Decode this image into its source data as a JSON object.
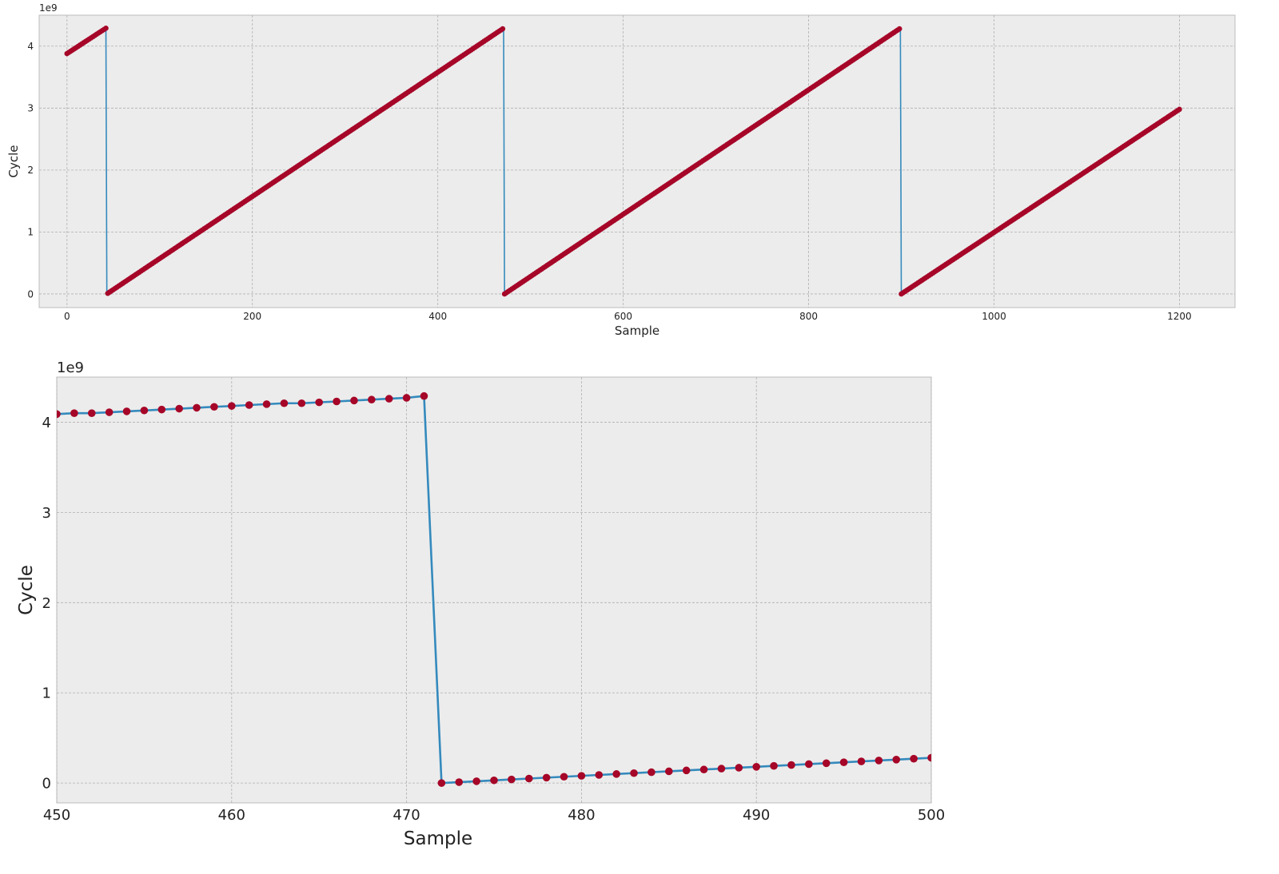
{
  "chart_data": [
    {
      "type": "line",
      "xlabel": "Sample",
      "ylabel": "Cycle",
      "offset_text": "1e9",
      "xlim": [
        -30,
        1260
      ],
      "ylim": [
        -0.22,
        4.5
      ],
      "x_ticks": [
        0,
        200,
        400,
        600,
        800,
        1000,
        1200
      ],
      "x_tick_labels": [
        "0",
        "200",
        "400",
        "600",
        "800",
        "1000",
        "1200"
      ],
      "y_ticks": [
        0,
        1,
        2,
        3,
        4
      ],
      "y_tick_labels": [
        "0",
        "1",
        "2",
        "3",
        "4"
      ],
      "grid": true,
      "line_color": "#348ABD",
      "marker_color": "#A60628",
      "series": [
        {
          "x": [
            0,
            42,
            42,
            471,
            472,
            899,
            900,
            1200
          ],
          "y": [
            3.88,
            4.29,
            4.29,
            4.29,
            0.0,
            4.29,
            0.0,
            2.98
          ],
          "segments": [
            {
              "x_start": 0,
              "x_end": 42,
              "y_start": 3.88,
              "y_end": 4.29
            },
            {
              "x_start": 43,
              "x_end": 471,
              "y_start": 0.0,
              "y_end": 4.29
            },
            {
              "x_start": 472,
              "x_end": 899,
              "y_start": 0.0,
              "y_end": 4.29
            },
            {
              "x_start": 900,
              "x_end": 1200,
              "y_start": 0.0,
              "y_end": 2.98
            }
          ],
          "marker_every": 2
        }
      ]
    },
    {
      "type": "line",
      "xlabel": "Sample",
      "ylabel": "Cycle",
      "offset_text": "1e9",
      "xlim": [
        450,
        500
      ],
      "ylim": [
        -0.22,
        4.5
      ],
      "x_ticks": [
        450,
        460,
        470,
        480,
        490,
        500
      ],
      "x_tick_labels": [
        "450",
        "460",
        "470",
        "480",
        "490",
        "500"
      ],
      "y_ticks": [
        0,
        1,
        2,
        3,
        4
      ],
      "y_tick_labels": [
        "0",
        "1",
        "2",
        "3",
        "4"
      ],
      "grid": true,
      "line_color": "#348ABD",
      "marker_color": "#A60628",
      "series": [
        {
          "x": [
            450,
            451,
            452,
            453,
            454,
            455,
            456,
            457,
            458,
            459,
            460,
            461,
            462,
            463,
            464,
            465,
            466,
            467,
            468,
            469,
            470,
            471,
            472,
            473,
            474,
            475,
            476,
            477,
            478,
            479,
            480,
            481,
            482,
            483,
            484,
            485,
            486,
            487,
            488,
            489,
            490,
            491,
            492,
            493,
            494,
            495,
            496,
            497,
            498,
            499,
            500
          ],
          "y": [
            4.09,
            4.1,
            4.1,
            4.11,
            4.12,
            4.13,
            4.14,
            4.15,
            4.16,
            4.17,
            4.18,
            4.19,
            4.2,
            4.21,
            4.21,
            4.22,
            4.23,
            4.24,
            4.25,
            4.26,
            4.27,
            4.29,
            0.0,
            0.01,
            0.02,
            0.03,
            0.04,
            0.05,
            0.06,
            0.07,
            0.08,
            0.09,
            0.1,
            0.11,
            0.12,
            0.13,
            0.14,
            0.15,
            0.16,
            0.17,
            0.18,
            0.19,
            0.2,
            0.21,
            0.22,
            0.23,
            0.24,
            0.25,
            0.26,
            0.27,
            0.28
          ]
        }
      ]
    }
  ]
}
